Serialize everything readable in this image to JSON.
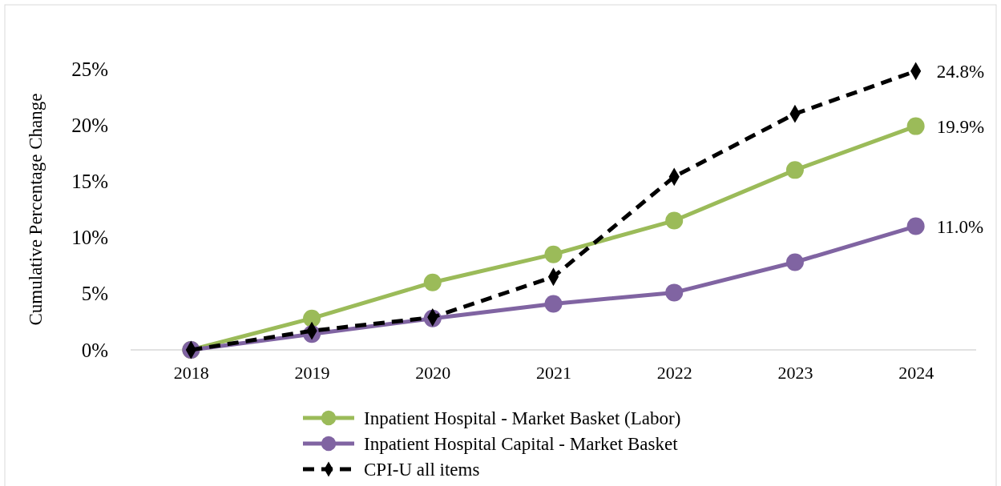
{
  "chart_data": {
    "type": "line",
    "ylabel": "Cumulative Percentage Change",
    "categories": [
      "2018",
      "2019",
      "2020",
      "2021",
      "2022",
      "2023",
      "2024"
    ],
    "ylim": [
      0,
      25
    ],
    "yticks": [
      {
        "value": 0,
        "label": "0%"
      },
      {
        "value": 5,
        "label": "5%"
      },
      {
        "value": 10,
        "label": "10%"
      },
      {
        "value": 15,
        "label": "15%"
      },
      {
        "value": 20,
        "label": "20%"
      },
      {
        "value": 25,
        "label": "25%"
      }
    ],
    "series": [
      {
        "name": "Inpatient Hospital - Market Basket (Labor)",
        "color": "#9bbb59",
        "marker": "circle",
        "line_style": "solid",
        "values": [
          0,
          2.8,
          6.0,
          8.5,
          11.5,
          16.0,
          19.9
        ],
        "value_labels": [
          null,
          null,
          null,
          null,
          null,
          null,
          "19.9%"
        ]
      },
      {
        "name": "Inpatient Hospital Capital - Market Basket",
        "color": "#8064a2",
        "marker": "circle",
        "line_style": "solid",
        "values": [
          0,
          1.4,
          2.8,
          4.1,
          5.1,
          7.8,
          11.0
        ],
        "value_labels": [
          null,
          null,
          null,
          null,
          null,
          null,
          "11.0%"
        ]
      },
      {
        "name": "CPI-U all items",
        "color": "#000000",
        "marker": "diamond",
        "line_style": "dashed",
        "values": [
          0,
          1.7,
          2.9,
          6.5,
          15.4,
          21.0,
          24.8
        ],
        "value_labels": [
          null,
          null,
          null,
          null,
          null,
          null,
          "24.8%"
        ]
      }
    ],
    "grid": false,
    "legend": "bottom"
  }
}
